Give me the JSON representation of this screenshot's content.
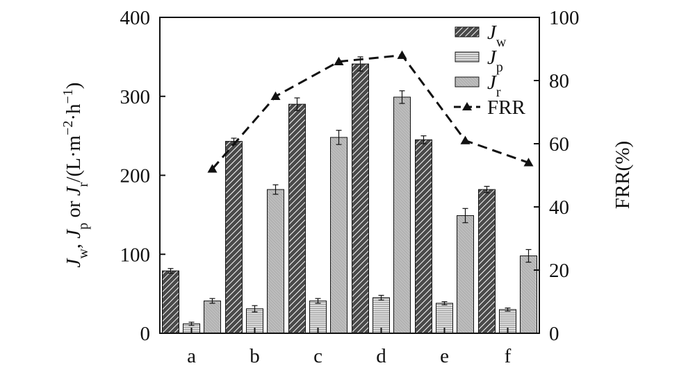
{
  "chart_data": {
    "type": "bar",
    "categories": [
      "a",
      "b",
      "c",
      "d",
      "e",
      "f"
    ],
    "left_axis": {
      "ylim": [
        0,
        400
      ],
      "ticks": [
        0,
        100,
        200,
        300,
        400
      ],
      "label_parts": [
        {
          "t": "J",
          "italic": true
        },
        {
          "t": "w",
          "sub": true
        },
        {
          "t": ", "
        },
        {
          "t": "J",
          "italic": true
        },
        {
          "t": "p",
          "sub": true
        },
        {
          "t": " or "
        },
        {
          "t": "J",
          "italic": true
        },
        {
          "t": "r",
          "sub": true
        },
        {
          "t": "/(L·m"
        },
        {
          "t": "−2",
          "sup": true
        },
        {
          "t": "·h"
        },
        {
          "t": "−1",
          "sup": true
        },
        {
          "t": ")"
        }
      ]
    },
    "right_axis": {
      "label": "FRR(%)",
      "ylim": [
        0,
        100
      ],
      "ticks": [
        0,
        20,
        40,
        60,
        80,
        100
      ]
    },
    "series": [
      {
        "name": "Jw",
        "values": [
          79,
          243,
          290,
          341,
          245,
          182
        ],
        "errors": [
          3,
          4,
          8,
          9,
          5,
          4
        ],
        "pattern": "hatch"
      },
      {
        "name": "Jp",
        "values": [
          12,
          31,
          41,
          45,
          38,
          30
        ],
        "errors": [
          2,
          4,
          3,
          3,
          2,
          2
        ],
        "pattern": "horizontal"
      },
      {
        "name": "Jr",
        "values": [
          41,
          182,
          248,
          299,
          149,
          98
        ],
        "errors": [
          3,
          6,
          9,
          8,
          9,
          8
        ],
        "pattern": "diagonal"
      }
    ],
    "line_series": {
      "name": "FRR",
      "values": [
        52,
        75,
        86,
        88,
        61,
        54
      ],
      "axis": "right",
      "marker": "triangle",
      "style": "dashed"
    },
    "legend": {
      "placement": "top-right",
      "entries": [
        {
          "main": "J",
          "sub": "w"
        },
        {
          "main": "J",
          "sub": "p"
        },
        {
          "main": "J",
          "sub": "r"
        },
        {
          "main": "FRR",
          "sub": ""
        }
      ]
    },
    "grid": false
  }
}
